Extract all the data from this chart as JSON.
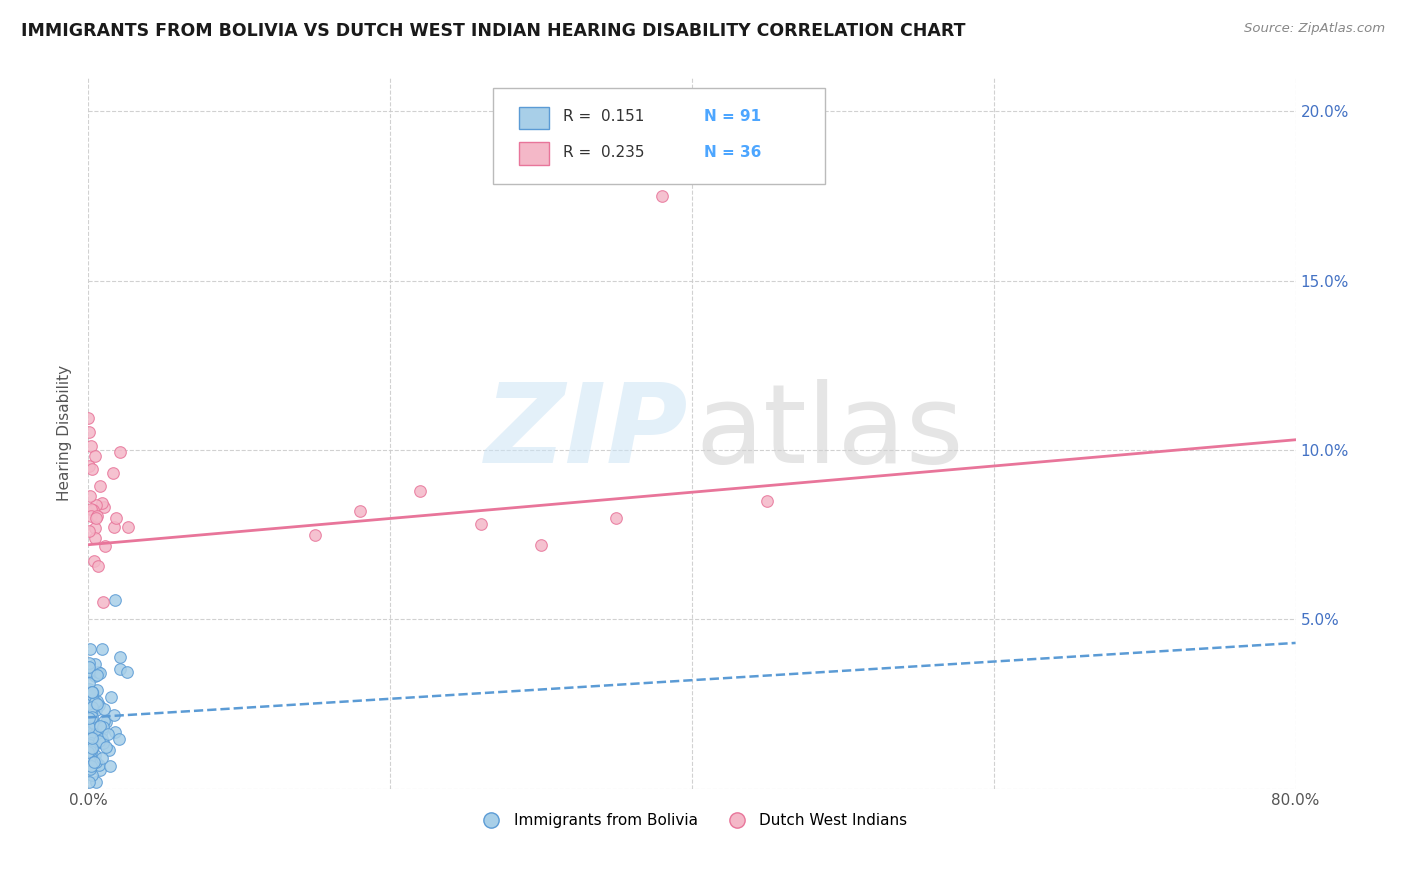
{
  "title": "IMMIGRANTS FROM BOLIVIA VS DUTCH WEST INDIAN HEARING DISABILITY CORRELATION CHART",
  "source": "Source: ZipAtlas.com",
  "ylabel": "Hearing Disability",
  "xlim": [
    0,
    0.8
  ],
  "ylim": [
    0,
    0.21
  ],
  "xticks": [
    0.0,
    0.2,
    0.4,
    0.6,
    0.8
  ],
  "xticklabels": [
    "0.0%",
    "",
    "",
    "",
    "80.0%"
  ],
  "yticks": [
    0.0,
    0.05,
    0.1,
    0.15,
    0.2
  ],
  "yticklabels_left": [
    "",
    "",
    "",
    "",
    ""
  ],
  "yticklabels_right": [
    "",
    "5.0%",
    "10.0%",
    "15.0%",
    "20.0%"
  ],
  "legend_r_blue": "R =  0.151",
  "legend_n_blue": "N = 91",
  "legend_r_pink": "R =  0.235",
  "legend_n_pink": "N = 36",
  "color_blue_fill": "#a8cfe8",
  "color_blue_edge": "#5b9bd5",
  "color_blue_line": "#5b9bd5",
  "color_pink_fill": "#f4b8c8",
  "color_pink_edge": "#e8759a",
  "color_pink_line": "#e8759a",
  "color_n_blue": "#4472C4",
  "color_n_pink": "#e8759a",
  "background_color": "#ffffff",
  "grid_color": "#cccccc",
  "bolivia_line_y0": 0.021,
  "bolivia_line_y1": 0.043,
  "dutch_line_y0": 0.072,
  "dutch_line_y1": 0.103
}
